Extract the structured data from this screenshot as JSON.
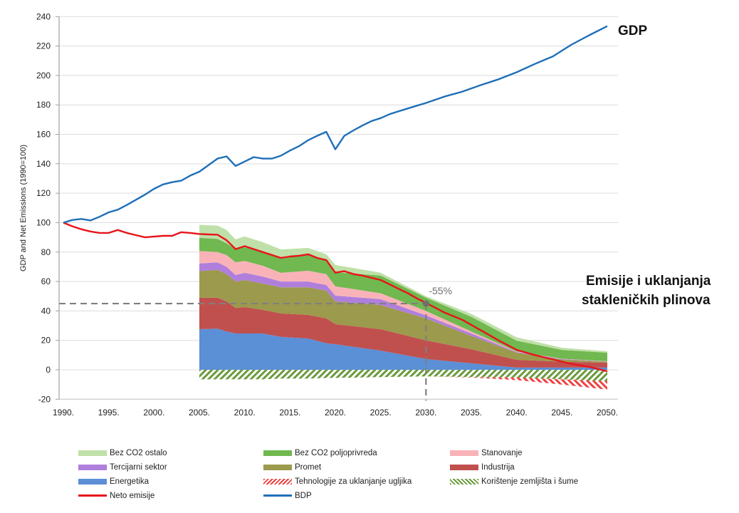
{
  "chart_data": {
    "type": "area",
    "title": "",
    "ylabel": "GDP and Net Emissions (1990=100)",
    "xlabel": "",
    "ylim": [
      -20,
      240
    ],
    "xlim": [
      1990,
      2050
    ],
    "yticks": [
      -20,
      0,
      20,
      40,
      60,
      80,
      100,
      120,
      140,
      160,
      180,
      200,
      220,
      240
    ],
    "xticks": [
      "1990.",
      "1995.",
      "2000.",
      "2005.",
      "2010.",
      "2015.",
      "2020.",
      "2025.",
      "2030.",
      "2035.",
      "2040.",
      "2045.",
      "2050."
    ],
    "grid": "horizontal",
    "legend_position": "bottom",
    "annotations": {
      "gdp_label": "GDP",
      "emissions_label_line1": "Emisije i uklanjanja",
      "emissions_label_line2": "stakleničkih plinova",
      "target_label": "-55%",
      "target": {
        "x": 2030,
        "y": 45
      }
    },
    "stack_x": [
      2005,
      2007,
      2008,
      2009,
      2010,
      2012,
      2014,
      2017,
      2019,
      2020,
      2025,
      2030,
      2035,
      2040,
      2045,
      2050
    ],
    "stacked_series": [
      {
        "name": "Energetika",
        "key": "energetika",
        "color": "#5b8fd6",
        "values": [
          27.6,
          28,
          26,
          24.7,
          24.7,
          24.7,
          22.3,
          21.3,
          18,
          17.4,
          13,
          7.3,
          4.4,
          1.5,
          1.5,
          1.5
        ]
      },
      {
        "name": "Industrija",
        "key": "industrija",
        "color": "#c0504d",
        "values": [
          21.3,
          21,
          20.5,
          17.3,
          17.9,
          16,
          16,
          16,
          17,
          13.6,
          14.6,
          12.7,
          9.6,
          5.3,
          4.0,
          3.3
        ]
      },
      {
        "name": "Promet",
        "key": "promet",
        "color": "#9c9a4c",
        "values": [
          18.1,
          19,
          18.5,
          18,
          18.4,
          17.9,
          17.7,
          18.7,
          18.8,
          15.5,
          16.4,
          15,
          9,
          4.8,
          1.5,
          0.6
        ]
      },
      {
        "name": "Tercijarni sektor",
        "key": "tercijarni",
        "color": "#b07fdc",
        "values": [
          5.3,
          5,
          5,
          4.4,
          4.9,
          4.8,
          4,
          4,
          3.8,
          3.9,
          4,
          2,
          1.7,
          0.5,
          0.3,
          0.2
        ]
      },
      {
        "name": "Stanovanje",
        "key": "stanovanje",
        "color": "#f9b3b8",
        "values": [
          8.4,
          7,
          8,
          8.6,
          8.1,
          7.3,
          5.9,
          7.3,
          7.4,
          6.3,
          4,
          3,
          1.3,
          0.3,
          0.2,
          0.2
        ]
      },
      {
        "name": "Bez CO2 poljoprivreda",
        "key": "poljoprivreda",
        "color": "#70b84f",
        "values": [
          9.0,
          9,
          8,
          9,
          9.3,
          9.7,
          9.6,
          11.2,
          9.6,
          9.6,
          12,
          9,
          10,
          7.4,
          6.0,
          5.8
        ]
      },
      {
        "name": "Bez CO2 ostalo",
        "key": "ostalo",
        "color": "#bfe0a8",
        "values": [
          8.8,
          9,
          9,
          6.6,
          7.3,
          6.3,
          6.3,
          4.3,
          3.9,
          4.9,
          2,
          1,
          2,
          2.3,
          1.5,
          1.0
        ]
      }
    ],
    "negative_series": [
      {
        "name": "Korištenje zemljišta i šume",
        "key": "lulucf",
        "color": "#6a9a3c",
        "pattern": "hatch-green",
        "values": [
          -6.5,
          -6.5,
          -6.5,
          -6.5,
          -6.5,
          -6.5,
          -6,
          -6,
          -5.5,
          -5.5,
          -5,
          -4.5,
          -5,
          -5.3,
          -6.5,
          -7.8
        ]
      },
      {
        "name": "Tehnologije za uklanjanje ugljika",
        "key": "ccs",
        "color": "#f04040",
        "pattern": "hatch-red",
        "values": [
          0,
          0,
          0,
          0,
          0,
          0,
          0,
          0,
          0,
          0,
          0,
          0,
          -0.3,
          -1.7,
          -3.5,
          -5.7
        ]
      }
    ],
    "line_series": [
      {
        "name": "Neto emisije",
        "key": "neto",
        "color": "#e8141b",
        "x": [
          1990,
          1991,
          1992,
          1993,
          1994,
          1995,
          1996,
          1997,
          1998,
          1999,
          2000,
          2001,
          2002,
          2003,
          2004,
          2005,
          2006,
          2007,
          2008,
          2009,
          2010,
          2011,
          2012,
          2013,
          2014,
          2015,
          2016,
          2017,
          2018,
          2019,
          2020,
          2021,
          2022,
          2023,
          2024,
          2025,
          2026,
          2027,
          2028,
          2029,
          2030,
          2032,
          2034,
          2036,
          2038,
          2040,
          2042,
          2044,
          2046,
          2048,
          2050
        ],
        "values": [
          100,
          97.5,
          95.5,
          94,
          93,
          93,
          95,
          93,
          91.5,
          90,
          90.5,
          91,
          91,
          93.5,
          93,
          92.3,
          92,
          91.8,
          88,
          82,
          84,
          82,
          80,
          78,
          76,
          77,
          77.5,
          78.5,
          76,
          74.5,
          66,
          67,
          65,
          64,
          62.5,
          61,
          58,
          55,
          52,
          48.5,
          45.5,
          39,
          34,
          27,
          20,
          13.5,
          10,
          7,
          4,
          2,
          -1
        ]
      },
      {
        "name": "BDP",
        "key": "bdp",
        "color": "#1f6fb8",
        "x": [
          1990,
          1991,
          1992,
          1993,
          1994,
          1995,
          1996,
          1997,
          1998,
          1999,
          2000,
          2001,
          2002,
          2003,
          2004,
          2005,
          2006,
          2007,
          2008,
          2009,
          2010,
          2011,
          2012,
          2013,
          2014,
          2015,
          2016,
          2017,
          2018,
          2019,
          2020,
          2021,
          2022,
          2023,
          2024,
          2025,
          2026,
          2027,
          2028,
          2029,
          2030,
          2032,
          2034,
          2036,
          2038,
          2040,
          2042,
          2044,
          2046,
          2048,
          2050
        ],
        "values": [
          100,
          101.8,
          102.5,
          101.5,
          104,
          107,
          108.8,
          112,
          115.5,
          119,
          123,
          126,
          127.5,
          128.5,
          132,
          134.6,
          139,
          143.5,
          145,
          138.5,
          141.5,
          144.5,
          143.5,
          143.5,
          145.5,
          149,
          152,
          156,
          159,
          161.7,
          149.8,
          159,
          162.7,
          166,
          169,
          171,
          173.7,
          175.7,
          177.6,
          179.5,
          181.3,
          185.6,
          189,
          193.4,
          197.4,
          202.2,
          207.8,
          213,
          220.8,
          227.3,
          233.5
        ]
      }
    ],
    "legend": [
      {
        "label": "Bez CO2 ostalo",
        "color": "#bfe0a8",
        "kind": "fill"
      },
      {
        "label": "Bez CO2 poljoprivreda",
        "color": "#70b84f",
        "kind": "fill"
      },
      {
        "label": "Stanovanje",
        "color": "#f9b3b8",
        "kind": "fill"
      },
      {
        "label": "Tercijarni sektor",
        "color": "#b07fdc",
        "kind": "fill"
      },
      {
        "label": "Promet",
        "color": "#9c9a4c",
        "kind": "fill"
      },
      {
        "label": "Industrija",
        "color": "#c0504d",
        "kind": "fill"
      },
      {
        "label": "Energetika",
        "color": "#5b8fd6",
        "kind": "fill"
      },
      {
        "label": "Tehnologije za uklanjanje ugljika",
        "color": "#f04040",
        "kind": "hatch-red"
      },
      {
        "label": "Korištenje zemljišta i šume",
        "color": "#6a9a3c",
        "kind": "hatch-green"
      },
      {
        "label": "Neto emisije",
        "color": "#e8141b",
        "kind": "line"
      },
      {
        "label": "BDP",
        "color": "#1f6fb8",
        "kind": "line"
      }
    ]
  }
}
